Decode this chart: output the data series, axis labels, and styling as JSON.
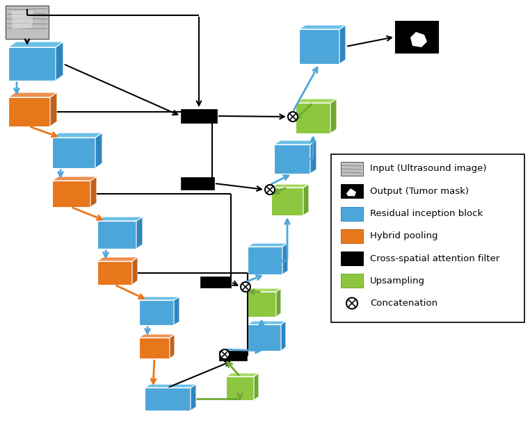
{
  "blue": "#4DA6D9",
  "blue_side": "#2E86C1",
  "blue_top": "#6BC0E8",
  "orange": "#E8761A",
  "orange_side": "#C0611A",
  "orange_top": "#F09050",
  "green": "#8DC63F",
  "green_side": "#6EA832",
  "green_top": "#A8D860",
  "bg": "#FFFFFF",
  "legend_items": [
    {
      "label": "Input (Ultrasound image)",
      "type": "image"
    },
    {
      "label": "Output (Tumor mask)",
      "type": "output"
    },
    {
      "label": "Residual inception block",
      "type": "blue"
    },
    {
      "label": "Hybrid pooling",
      "type": "orange"
    },
    {
      "label": "Cross-spatial attention filter",
      "type": "black"
    },
    {
      "label": "Upsampling",
      "type": "green"
    },
    {
      "label": "Concatenation",
      "type": "concat"
    }
  ]
}
